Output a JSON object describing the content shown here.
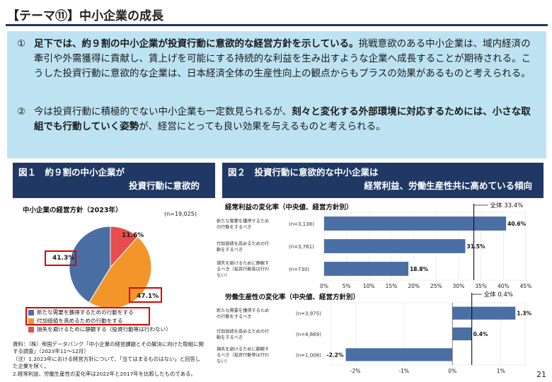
{
  "header": {
    "title": "【テーマ⑪】中小企業の成長"
  },
  "summary": {
    "p1": {
      "num": "①",
      "bold": "足下では、約９割の中小企業が投資行動に意欲的な経営方針を示している。",
      "rest": "挑戦意欲のある中小企業は、域内経済の牽引や外需獲得に貢献し、賃上げを可能にする持続的な利益を生み出すような企業へ成長することが期待される。こうした投資行動に意欲的な企業は、日本経済全体の生産性向上の観点からもプラスの効果があるものと考えられる。"
    },
    "p2": {
      "num": "②",
      "pre": "今は投資行動に積極的でない中小企業も一定数見られるが、",
      "bold": "刻々と変化する外部環境に対応するためには、小さな取組でも行動していく姿勢",
      "post": "が、経営にとっても良い効果を与えるものと考えられる。"
    }
  },
  "fig1": {
    "title_line1": "図１　約９割の中小企業が",
    "title_line2": "投資行動に意欲的",
    "subtitle": "中小企業の経営方針（2023年）",
    "n": "(n=19,025)",
    "legend": [
      {
        "label": "新たな需要を獲得するための行動をする",
        "color": "#4a6fa5"
      },
      {
        "label": "付加価値を高めるための行動をする",
        "color": "#f2962a"
      },
      {
        "label": "損失を避けるために静観する（投資行動等は行わない）",
        "color": "#e84c4c"
      }
    ]
  },
  "fig2": {
    "title_line1": "図２　投資行動に意欲的な中小企業は",
    "title_line2": "経常利益、労働生産性共に高めている傾向",
    "chartA_title": "経常利益の変化率（中央値、経営方針別）",
    "chartA_total": "全体 33.4%",
    "chartB_title": "労働生産性の変化率（中央値、経営方針別）",
    "chartB_total": "全体 0.4%"
  },
  "chart_data": [
    {
      "type": "pie",
      "title": "中小企業の経営方針（2023年）",
      "categories": [
        "新たな需要を獲得するための行動をする",
        "付加価値を高めるための行動をする",
        "損失を避けるために静観する（投資行動等は行わない）"
      ],
      "values": [
        41.3,
        47.1,
        11.6
      ],
      "labels": [
        "41.3%",
        "47.1%",
        "11.6%"
      ],
      "colors": [
        "#4a6fa5",
        "#f2962a",
        "#e84c4c"
      ]
    },
    {
      "type": "bar",
      "title": "経常利益の変化率（中央値、経営方針別）",
      "categories": [
        "新たな需要を獲得するための行動をするべき",
        "付加価値を高めるための行動をするべき",
        "損失を避けるために静観するべき（投資行動等は行わない）"
      ],
      "n_labels": [
        "(n=3,138)",
        "(n=3,761)",
        "(n=730)"
      ],
      "values": [
        40.6,
        31.5,
        18.8
      ],
      "labels": [
        "40.6%",
        "31.5%",
        "18.8%"
      ],
      "reference": 33.4,
      "xlim": [
        0,
        45
      ],
      "ticks": [
        0,
        5,
        10,
        15,
        20,
        25,
        30,
        35,
        40,
        45
      ],
      "tick_labels": [
        "0%",
        "5%",
        "10%",
        "15%",
        "20%",
        "25%",
        "30%",
        "35%",
        "40%",
        "45%"
      ],
      "color": "#4a6fa5"
    },
    {
      "type": "bar",
      "title": "労働生産性の変化率（中央値、経営方針別）",
      "categories": [
        "新たな需要を獲得するための行動をするべき",
        "付加価値を高めるための行動をするべき",
        "損失を避けるために静観するべき（投資行動等は行わない）"
      ],
      "n_labels": [
        "(n=3,975)",
        "(n=4,669)",
        "(n=1,008)"
      ],
      "values": [
        1.3,
        0.4,
        -2.2
      ],
      "labels": [
        "1.3%",
        "0.4%",
        "-2.2%"
      ],
      "reference": 0.4,
      "xlim": [
        -2.5,
        1.5
      ],
      "ticks": [
        -2,
        -1,
        0,
        1
      ],
      "tick_labels": [
        "-2%",
        "-1%",
        "0%",
        "1%"
      ],
      "color": "#4a6fa5"
    }
  ],
  "notes": [
    "資料：（株）帝国データバンク「中小企業の経営課題とその解決に向けた取組に関する調査」（2023年11～12月）",
    "（注）1.2023年における経営方針について、「当てはまるものはない」と回答した企業を除く。",
    "2.経常利益、労働生産性の変化率は2022年と2017年を比較したものである。"
  ],
  "page_number": "21"
}
